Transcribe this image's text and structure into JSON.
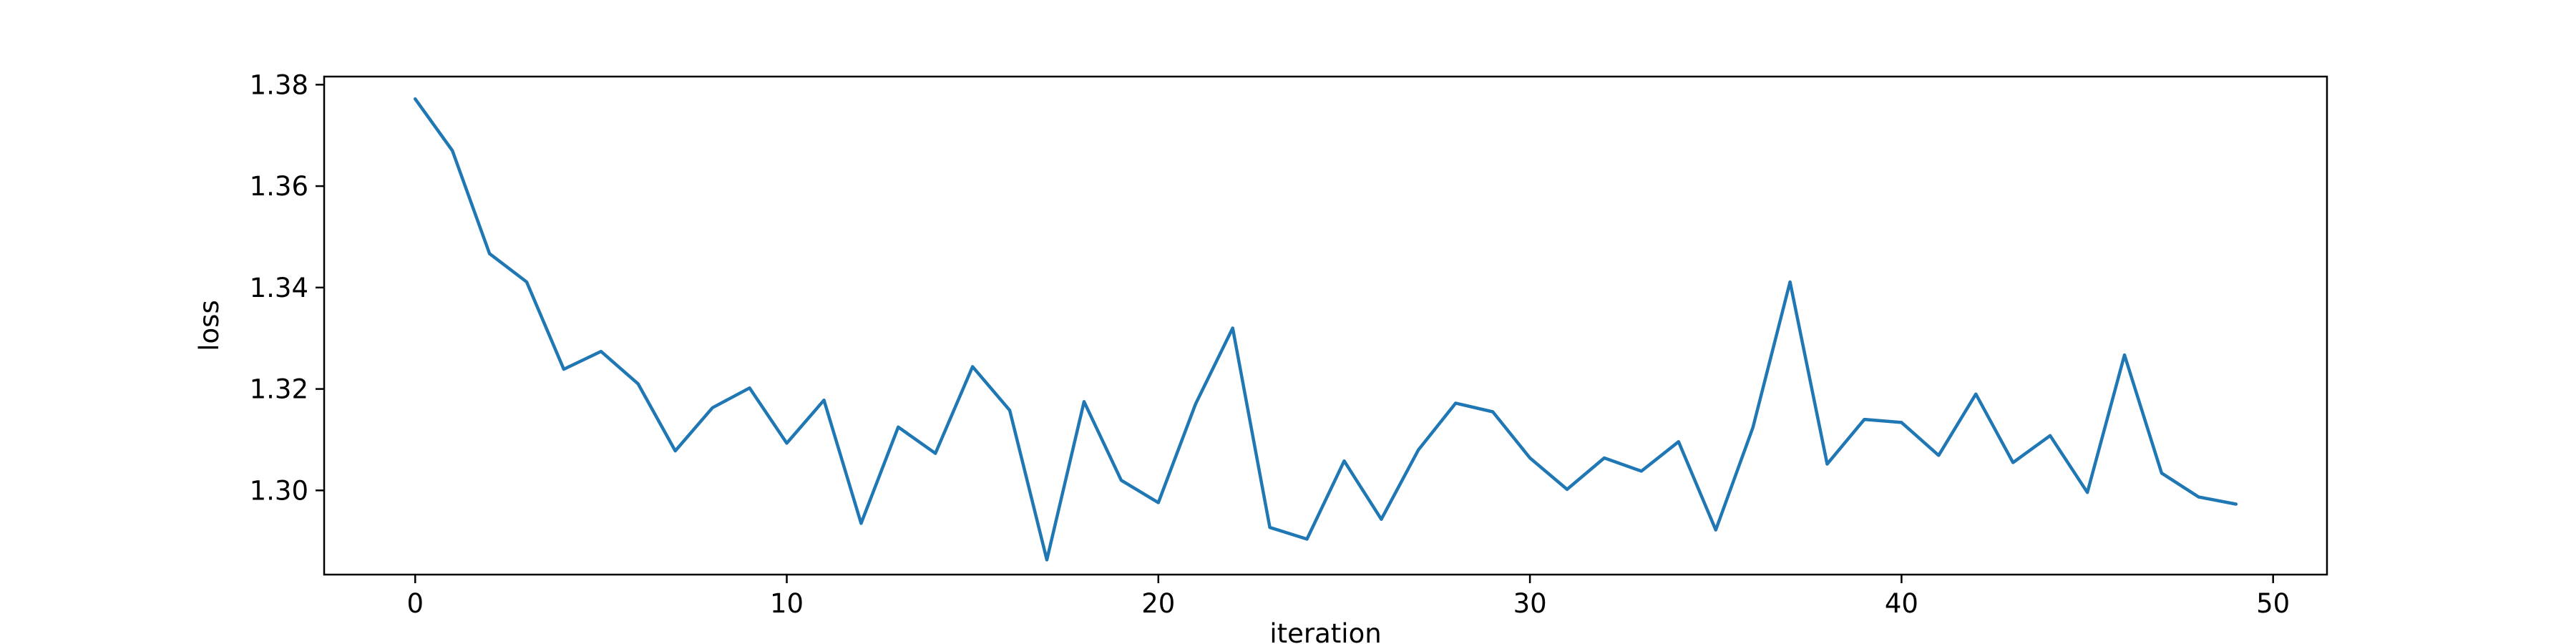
{
  "chart_data": {
    "type": "line",
    "xlabel": "iteration",
    "ylabel": "loss",
    "xlim": [
      -2.45,
      51.45
    ],
    "ylim": [
      1.2834,
      1.3816
    ],
    "xticks": [
      0,
      10,
      20,
      30,
      40,
      50
    ],
    "yticks": [
      1.3,
      1.32,
      1.34,
      1.36,
      1.38
    ],
    "xtick_labels": [
      "0",
      "10",
      "20",
      "30",
      "40",
      "50"
    ],
    "ytick_labels": [
      "1.30",
      "1.32",
      "1.34",
      "1.36",
      "1.38"
    ],
    "grid": false,
    "line_color": "#1f77b4",
    "series": [
      {
        "x": [
          0,
          1,
          2,
          3,
          4,
          5,
          6,
          7,
          8,
          9,
          10,
          11,
          12,
          13,
          14,
          15,
          16,
          17,
          18,
          19,
          20,
          21,
          22,
          23,
          24,
          25,
          26,
          27,
          28,
          29,
          30,
          31,
          32,
          33,
          34,
          35,
          36,
          37,
          38,
          39,
          40,
          41,
          42,
          43,
          44,
          45,
          46,
          47,
          48,
          49
        ],
        "values": [
          1.3772,
          1.367,
          1.3467,
          1.3411,
          1.3239,
          1.3274,
          1.321,
          1.3078,
          1.3163,
          1.3202,
          1.3093,
          1.3178,
          1.2935,
          1.3125,
          1.3073,
          1.3244,
          1.3158,
          1.2863,
          1.3175,
          1.302,
          1.2976,
          1.317,
          1.332,
          1.2927,
          1.2904,
          1.3058,
          1.2943,
          1.308,
          1.3172,
          1.3155,
          1.3064,
          1.3002,
          1.3064,
          1.3038,
          1.3096,
          1.2922,
          1.3124,
          1.3411,
          1.3052,
          1.314,
          1.3134,
          1.3069,
          1.319,
          1.3055,
          1.3108,
          1.2996,
          1.3267,
          1.3034,
          1.2987,
          1.2973
        ]
      }
    ]
  }
}
